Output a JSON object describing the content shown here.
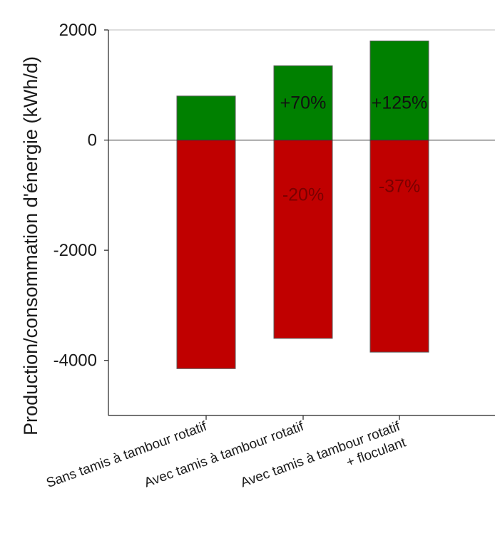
{
  "chart_data": {
    "type": "bar",
    "stacked": true,
    "ylabel": "Production/consommation d'énergie (kWh/d)",
    "xlabel": "",
    "ylim": [
      -5000,
      2000
    ],
    "yticks": [
      "2000",
      "0",
      "-2000",
      "-4000"
    ],
    "ytick_values": [
      2000,
      0,
      -2000,
      -4000
    ],
    "categories": [
      [
        "Sans tamis à tambour rotatif"
      ],
      [
        "Avec tamis à tambour rotatif"
      ],
      [
        "Avec tamis à tambour rotatif",
        "+ floculant"
      ]
    ],
    "series": [
      {
        "values": [
          800,
          1350,
          1800
        ],
        "color": "#008000",
        "labels": [
          "",
          "+70%",
          "+125%"
        ],
        "label_color": "#111111"
      },
      {
        "values": [
          -4150,
          -3600,
          -3850
        ],
        "color": "#c00000",
        "labels": [
          "",
          "-20%",
          "-37%"
        ],
        "label_color": "#7a0000"
      }
    ],
    "zero_line": true,
    "grid": false,
    "legend": "none"
  }
}
